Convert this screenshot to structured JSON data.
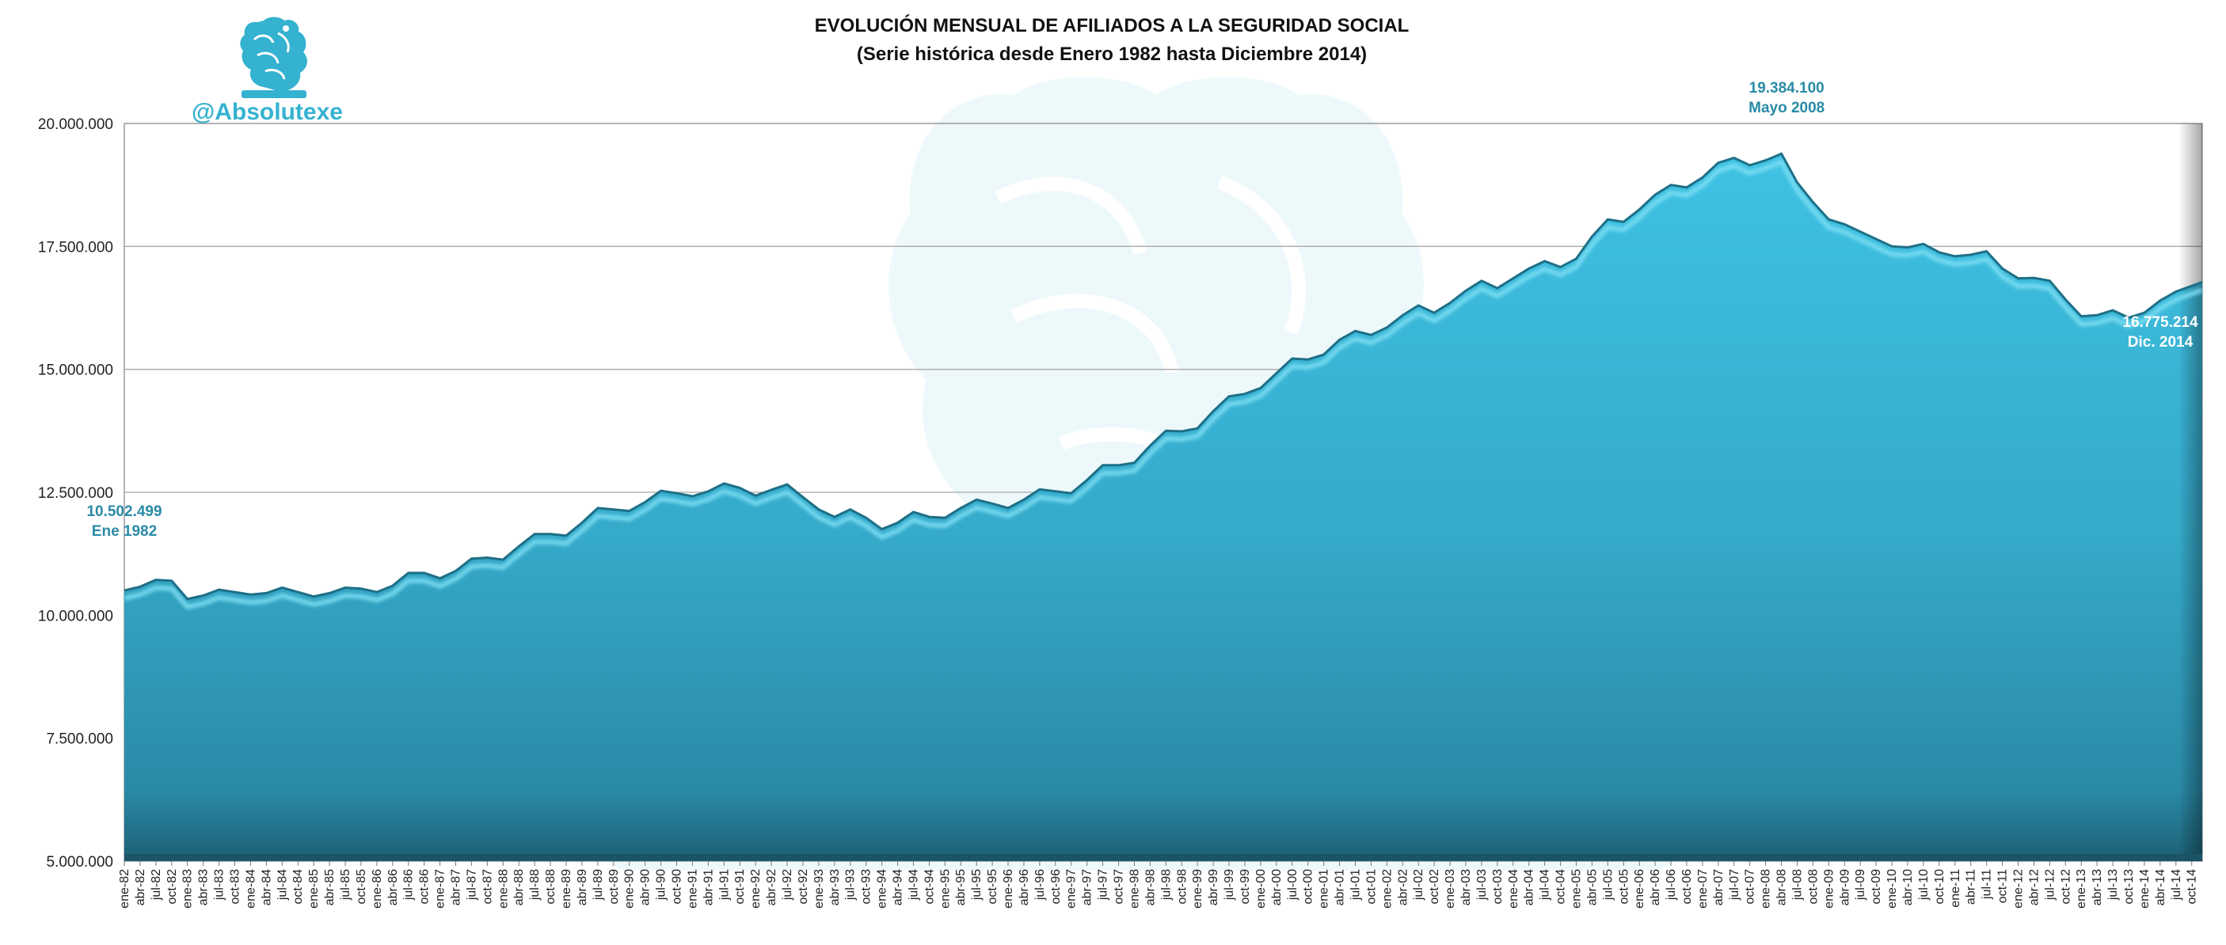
{
  "brand": {
    "handle": "@Absolutexe",
    "color": "#34b2d0",
    "logo_icon": "griffin-seal-icon"
  },
  "chart_data": {
    "type": "area",
    "title": "EVOLUCIÓN MENSUAL DE AFILIADOS A LA SEGURIDAD SOCIAL",
    "subtitle": "(Serie histórica desde Enero 1982 hasta Diciembre 2014)",
    "xlabel": "",
    "ylabel": "",
    "ylim": [
      5000000,
      20000000
    ],
    "y_ticks": [
      {
        "value": 5000000,
        "label": "5.000.000"
      },
      {
        "value": 7500000,
        "label": "7.500.000"
      },
      {
        "value": 10000000,
        "label": "10.000.000"
      },
      {
        "value": 12500000,
        "label": "12.500.000"
      },
      {
        "value": 15000000,
        "label": "15.000.000"
      },
      {
        "value": 17500000,
        "label": "17.500.000"
      },
      {
        "value": 20000000,
        "label": "20.000.000"
      }
    ],
    "grid": "horizontal",
    "legend": "none",
    "x_tick_format": "mmm-yy, every 3 months",
    "x_tick_months": [
      "ene",
      "abr",
      "jul",
      "oct"
    ],
    "x_start": "1982-01",
    "x_end": "2014-12",
    "series_color": "#3cb6d6",
    "series": [
      {
        "frequency": "quarterly",
        "values": [
          10502499,
          10580000,
          10720000,
          10700000,
          10330000,
          10400000,
          10520000,
          10470000,
          10420000,
          10450000,
          10560000,
          10470000,
          10380000,
          10450000,
          10560000,
          10540000,
          10470000,
          10600000,
          10860000,
          10860000,
          10750000,
          10900000,
          11150000,
          11170000,
          11130000,
          11400000,
          11650000,
          11650000,
          11620000,
          11880000,
          12180000,
          12150000,
          12120000,
          12300000,
          12530000,
          12480000,
          12420000,
          12520000,
          12680000,
          12590000,
          12430000,
          12550000,
          12660000,
          12400000,
          12150000,
          12000000,
          12150000,
          11980000,
          11750000,
          11880000,
          12100000,
          12000000,
          11980000,
          12180000,
          12350000,
          12270000,
          12180000,
          12350000,
          12560000,
          12520000,
          12480000,
          12750000,
          13050000,
          13050000,
          13100000,
          13450000,
          13750000,
          13740000,
          13800000,
          14150000,
          14450000,
          14500000,
          14620000,
          14920000,
          15220000,
          15200000,
          15300000,
          15600000,
          15780000,
          15700000,
          15850000,
          16100000,
          16300000,
          16150000,
          16350000,
          16600000,
          16800000,
          16650000,
          16850000,
          17050000,
          17200000,
          17080000,
          17250000,
          17700000,
          18050000,
          18000000,
          18250000,
          18550000,
          18750000,
          18700000,
          18900000,
          19200000,
          19300000,
          19150000,
          19250000,
          19384100,
          18800000,
          18400000,
          18050000,
          17950000,
          17800000,
          17650000,
          17500000,
          17480000,
          17550000,
          17380000,
          17300000,
          17330000,
          17400000,
          17050000,
          16850000,
          16860000,
          16800000,
          16420000,
          16080000,
          16100000,
          16200000,
          16050000,
          16150000,
          16400000,
          16580000,
          16775214
        ]
      }
    ],
    "annotations": [
      {
        "value_label": "10.502.499",
        "date_label": "Ene 1982",
        "color": "#2a8ba6"
      },
      {
        "value_label": "19.384.100",
        "date_label": "Mayo 2008",
        "color": "#2a8ba6"
      },
      {
        "value_label": "16.775.214",
        "date_label": "Dic. 2014",
        "color": "#ffffff"
      }
    ]
  }
}
